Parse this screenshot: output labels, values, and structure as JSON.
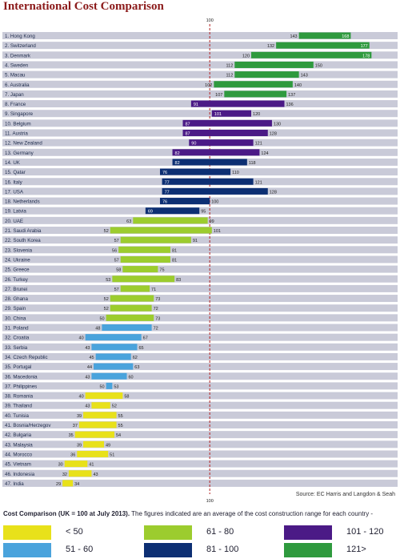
{
  "title": "International Cost Comparison",
  "source": "Source: EC Harris and Langdon & Seah",
  "footnote": {
    "bold": "Cost Comparison (UK = 100 at July 2013).",
    "text": " The figures indicated are an average of the cost construction range for each country -"
  },
  "colors": {
    "bar_track": "#c9cad8",
    "reference_line": "#b22222",
    "lt50": "#e8e11a",
    "r51_60": "#4aa3dc",
    "r61_80": "#9ccc2e",
    "r81_100": "#0d2f73",
    "r101_120": "#4b1a86",
    "gt121": "#2f9a3e"
  },
  "legend": [
    {
      "label": "< 50",
      "color": "#e8e11a"
    },
    {
      "label": "61 - 80",
      "color": "#9ccc2e"
    },
    {
      "label": "101 - 120",
      "color": "#4b1a86"
    },
    {
      "label": "51 - 60",
      "color": "#4aa3dc"
    },
    {
      "label": "81 - 100",
      "color": "#0d2f73"
    },
    {
      "label": "121>",
      "color": "#2f9a3e"
    }
  ],
  "chart_data": {
    "type": "bar",
    "orientation": "horizontal-range",
    "reference_value": 100,
    "reference_label": "100",
    "xlim": [
      0,
      186
    ],
    "rows": [
      {
        "label": "1. Hong Kong",
        "low": 143,
        "high": 168,
        "color": "#2f9a3e"
      },
      {
        "label": "2. Switzerland",
        "low": 132,
        "high": 177,
        "color": "#2f9a3e"
      },
      {
        "label": "3. Denmark",
        "low": 120,
        "high": 178,
        "color": "#2f9a3e"
      },
      {
        "label": "4. Sweden",
        "low": 112,
        "high": 150,
        "color": "#2f9a3e"
      },
      {
        "label": "5. Macau",
        "low": 112,
        "high": 143,
        "color": "#2f9a3e"
      },
      {
        "label": "6. Australia",
        "low": 102,
        "high": 140,
        "color": "#2f9a3e"
      },
      {
        "label": "7. Japan",
        "low": 107,
        "high": 137,
        "color": "#2f9a3e"
      },
      {
        "label": "8. France",
        "low": 91,
        "high": 136,
        "color": "#4b1a86"
      },
      {
        "label": "9. Singapore",
        "low": 101,
        "high": 120,
        "color": "#4b1a86"
      },
      {
        "label": "10. Belgium",
        "low": 87,
        "high": 130,
        "color": "#4b1a86"
      },
      {
        "label": "11. Austria",
        "low": 87,
        "high": 128,
        "color": "#4b1a86"
      },
      {
        "label": "12. New Zealand",
        "low": 90,
        "high": 121,
        "color": "#4b1a86"
      },
      {
        "label": "13. Germany",
        "low": 82,
        "high": 124,
        "color": "#4b1a86"
      },
      {
        "label": "14. UK",
        "low": 82,
        "high": 118,
        "color": "#0d2f73"
      },
      {
        "label": "15. Qatar",
        "low": 76,
        "high": 110,
        "color": "#0d2f73"
      },
      {
        "label": "16. Italy",
        "low": 77,
        "high": 121,
        "color": "#0d2f73"
      },
      {
        "label": "17. USA",
        "low": 77,
        "high": 128,
        "color": "#0d2f73"
      },
      {
        "label": "18. Netherlands",
        "low": 76,
        "high": 100,
        "color": "#0d2f73"
      },
      {
        "label": "19. Latvia",
        "low": 69,
        "high": 95,
        "color": "#0d2f73"
      },
      {
        "label": "20. UAE",
        "low": 63,
        "high": 99,
        "color": "#9ccc2e"
      },
      {
        "label": "21. Saudi Arabia",
        "low": 52,
        "high": 101,
        "color": "#9ccc2e"
      },
      {
        "label": "22. South Korea",
        "low": 57,
        "high": 91,
        "color": "#9ccc2e"
      },
      {
        "label": "23. Slovenia",
        "low": 56,
        "high": 81,
        "color": "#9ccc2e"
      },
      {
        "label": "24. Ukraine",
        "low": 57,
        "high": 81,
        "color": "#9ccc2e"
      },
      {
        "label": "25. Greece",
        "low": 58,
        "high": 75,
        "color": "#9ccc2e"
      },
      {
        "label": "26. Turkey",
        "low": 53,
        "high": 83,
        "color": "#9ccc2e"
      },
      {
        "label": "27. Brunei",
        "low": 57,
        "high": 71,
        "color": "#9ccc2e"
      },
      {
        "label": "28. Ghana",
        "low": 52,
        "high": 73,
        "color": "#9ccc2e"
      },
      {
        "label": "29. Spain",
        "low": 52,
        "high": 72,
        "color": "#9ccc2e"
      },
      {
        "label": "30. China",
        "low": 50,
        "high": 73,
        "color": "#9ccc2e"
      },
      {
        "label": "31. Poland",
        "low": 48,
        "high": 72,
        "color": "#4aa3dc"
      },
      {
        "label": "32. Croatia",
        "low": 40,
        "high": 67,
        "color": "#4aa3dc"
      },
      {
        "label": "33. Serbia",
        "low": 43,
        "high": 65,
        "color": "#4aa3dc"
      },
      {
        "label": "34. Czech Republic",
        "low": 45,
        "high": 62,
        "color": "#4aa3dc"
      },
      {
        "label": "35. Portugal",
        "low": 44,
        "high": 63,
        "color": "#4aa3dc"
      },
      {
        "label": "36. Macedonia",
        "low": 43,
        "high": 60,
        "color": "#4aa3dc"
      },
      {
        "label": "37. Philippines",
        "low": 50,
        "high": 53,
        "color": "#4aa3dc"
      },
      {
        "label": "38. Romania",
        "low": 40,
        "high": 58,
        "color": "#e8e11a"
      },
      {
        "label": "39. Thailand",
        "low": 43,
        "high": 52,
        "color": "#e8e11a"
      },
      {
        "label": "40. Tunisia",
        "low": 39,
        "high": 55,
        "color": "#e8e11a"
      },
      {
        "label": "41. Bosnia/Herzegov",
        "low": 37,
        "high": 55,
        "color": "#e8e11a"
      },
      {
        "label": "42. Bulgaria",
        "low": 35,
        "high": 54,
        "color": "#e8e11a"
      },
      {
        "label": "43. Malaysia",
        "low": 39,
        "high": 49,
        "color": "#e8e11a"
      },
      {
        "label": "44. Morocco",
        "low": 36,
        "high": 51,
        "color": "#e8e11a"
      },
      {
        "label": "45. Vietnam",
        "low": 30,
        "high": 41,
        "color": "#e8e11a"
      },
      {
        "label": "46. Indonesia",
        "low": 32,
        "high": 43,
        "color": "#e8e11a"
      },
      {
        "label": "47. India",
        "low": 29,
        "high": 34,
        "color": "#e8e11a"
      }
    ]
  }
}
